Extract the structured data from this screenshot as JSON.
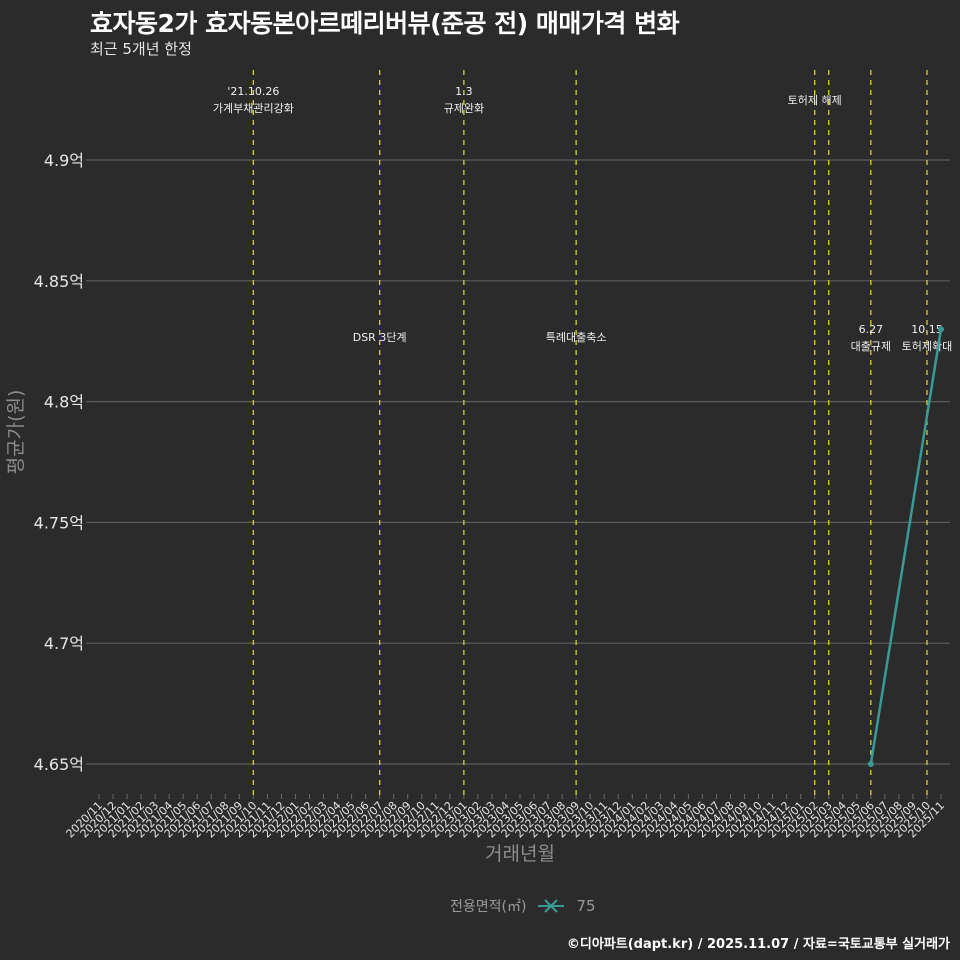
{
  "header": {
    "title": "효자동2가 효자동본아르떼리버뷰(준공 전) 매매가격 변화",
    "subtitle": "최근 5개년 한정"
  },
  "legend": {
    "title": "전용면적(㎡)",
    "items": [
      {
        "label": "75",
        "color": "#3a9a96"
      }
    ]
  },
  "footer": {
    "credit": "©디아파트(dapt.kr) / 2025.11.07 / 자료=국토교통부 실거래가"
  },
  "colors": {
    "background": "#2b2b2b",
    "grid": "#5c5c5c",
    "event_line": "#d4d422",
    "series": "#3a9a96"
  },
  "chart_data": {
    "type": "line",
    "title": "효자동2가 효자동본아르떼리버뷰(준공 전) 매매가격 변화",
    "subtitle": "최근 5개년 한정",
    "xlabel": "거래년월",
    "ylabel": "평균가(원)",
    "ylim": [
      4.645,
      4.93
    ],
    "y_ticks": [
      4.65,
      4.7,
      4.75,
      4.8,
      4.85,
      4.9
    ],
    "y_tick_labels": [
      "4.65억",
      "4.7억",
      "4.75억",
      "4.8억",
      "4.85억",
      "4.9억"
    ],
    "grid": true,
    "legend_position": "bottom",
    "categories": [
      "2020/11",
      "2020/12",
      "2021/01",
      "2021/02",
      "2021/03",
      "2021/04",
      "2021/05",
      "2021/06",
      "2021/07",
      "2021/08",
      "2021/09",
      "2021/10",
      "2021/11",
      "2021/12",
      "2022/01",
      "2022/02",
      "2022/03",
      "2022/04",
      "2022/05",
      "2022/06",
      "2022/07",
      "2022/08",
      "2022/09",
      "2022/10",
      "2022/11",
      "2022/12",
      "2023/01",
      "2023/02",
      "2023/03",
      "2023/04",
      "2023/05",
      "2023/06",
      "2023/07",
      "2023/08",
      "2023/09",
      "2023/10",
      "2023/11",
      "2023/12",
      "2024/01",
      "2024/02",
      "2024/03",
      "2024/04",
      "2024/05",
      "2024/06",
      "2024/07",
      "2024/08",
      "2024/09",
      "2024/10",
      "2024/11",
      "2024/12",
      "2025/01",
      "2025/02",
      "2025/03",
      "2025/04",
      "2025/05",
      "2025/06",
      "2025/07",
      "2025/08",
      "2025/09",
      "2025/10",
      "2025/11"
    ],
    "series": [
      {
        "name": "75",
        "points": [
          {
            "x": "2025/06",
            "y": 4.65
          },
          {
            "x": "2025/11",
            "y": 4.83
          }
        ]
      }
    ],
    "events": [
      {
        "x": "2021/10",
        "label_line1": "'21.10.26",
        "label_line2": "가계부채관리강화",
        "label_pos": "top"
      },
      {
        "x": "2022/07",
        "label_line1": "DSR 3단계",
        "label_line2": "",
        "label_pos": "mid"
      },
      {
        "x": "2023/01",
        "label_line1": "1.3",
        "label_line2": "규제완화",
        "label_pos": "top"
      },
      {
        "x": "2023/09",
        "label_line1": "특례대출축소",
        "label_line2": "",
        "label_pos": "mid"
      },
      {
        "x": "2025/02",
        "label_line1": "토허제 해제",
        "label_line2": "",
        "label_pos": "top2"
      },
      {
        "x": "2025/03",
        "label_line1": "",
        "label_line2": "",
        "label_pos": "none"
      },
      {
        "x": "2025/06",
        "label_line1": "6.27",
        "label_line2": "대출규제",
        "label_pos": "mid"
      },
      {
        "x": "2025/10",
        "label_line1": "10.15",
        "label_line2": "토허제확대",
        "label_pos": "mid"
      }
    ]
  }
}
